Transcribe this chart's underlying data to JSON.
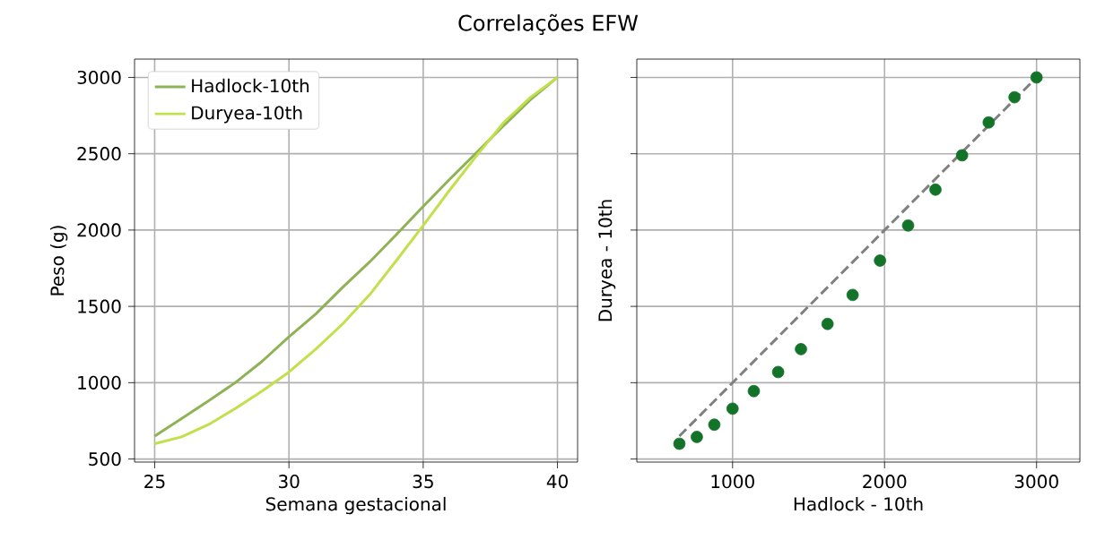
{
  "chart_data": [
    {
      "type": "line",
      "title": "Correlações EFW",
      "xlabel": "Semana gestacional",
      "ylabel": "Peso (g)",
      "x": [
        25,
        26,
        27,
        28,
        29,
        30,
        31,
        32,
        33,
        34,
        35,
        36,
        37,
        38,
        39,
        40
      ],
      "series": [
        {
          "name": "Hadlock-10th",
          "color": "#8db356",
          "values": [
            650,
            765,
            880,
            1000,
            1140,
            1300,
            1450,
            1625,
            1790,
            1970,
            2155,
            2335,
            2510,
            2685,
            2855,
            3000
          ]
        },
        {
          "name": "Duryea-10th",
          "color": "#c2df4c",
          "values": [
            600,
            645,
            725,
            830,
            945,
            1070,
            1220,
            1385,
            1575,
            1800,
            2030,
            2265,
            2490,
            2705,
            2870,
            3000
          ]
        }
      ],
      "xlim": [
        24.25,
        40.75
      ],
      "ylim": [
        480,
        3120
      ],
      "xticks": [
        25,
        30,
        35,
        40
      ],
      "yticks": [
        500,
        1000,
        1500,
        2000,
        2500,
        3000
      ],
      "grid": true,
      "legend": "top left",
      "marker": "none",
      "line_style": "solid"
    },
    {
      "type": "scatter",
      "xlabel": "Hadlock - 10th",
      "ylabel": "Duryea - 10th",
      "series": [
        {
          "type": "scatter",
          "color": "#137329",
          "marker": "circle",
          "x": [
            650,
            765,
            880,
            1000,
            1140,
            1300,
            1450,
            1625,
            1790,
            1970,
            2155,
            2335,
            2510,
            2685,
            2855,
            3000
          ],
          "values": [
            600,
            645,
            725,
            830,
            945,
            1070,
            1220,
            1385,
            1575,
            1800,
            2030,
            2265,
            2490,
            2705,
            2870,
            3000
          ]
        },
        {
          "type": "line",
          "color": "#808080",
          "line_style": "dashed",
          "marker": "none",
          "x": [
            650,
            3000
          ],
          "values": [
            650,
            3000
          ]
        }
      ],
      "xlim": [
        370,
        3285
      ],
      "ylim": [
        480,
        3120
      ],
      "xticks": [
        1000,
        2000,
        3000
      ],
      "yticks": [
        500,
        1000,
        1500,
        2000,
        2500,
        3000
      ],
      "grid": true,
      "tick_labels": "x"
    }
  ]
}
